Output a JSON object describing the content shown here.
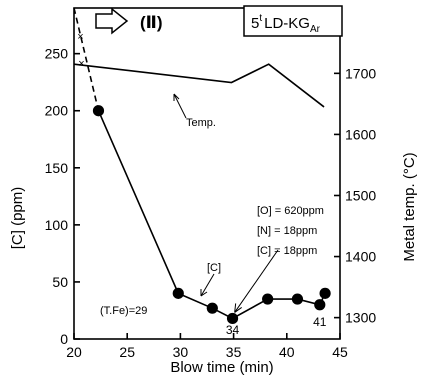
{
  "chart_data": {
    "type": "line",
    "xlabel": "Blow  time  (min)",
    "ylabel_left": "[C]  (ppm)",
    "ylabel_right": "Metal  temp. (°C)",
    "xlim": [
      20,
      45
    ],
    "ylim_left": [
      0,
      290
    ],
    "ylim_right": [
      1265,
      1807
    ],
    "x_ticks": [
      20,
      25,
      30,
      35,
      40,
      45
    ],
    "y_ticks_left": [
      0,
      50,
      100,
      150,
      200,
      250
    ],
    "y_ticks_right": [
      1300,
      1400,
      1500,
      1600,
      1700
    ],
    "grid": false,
    "series": [
      {
        "name": "[C]",
        "axis": "left",
        "x": [
          22.3,
          29.8,
          33.0,
          34.9,
          38.2,
          41.0,
          43.1,
          43.6
        ],
        "y": [
          200,
          40,
          27,
          18,
          35,
          35,
          30,
          40
        ],
        "extrapolated_start": [
          [
            20,
            290
          ],
          [
            22.3,
            200
          ]
        ]
      },
      {
        "name": "Temp.",
        "axis": "right",
        "x": [
          20,
          34.8,
          38.3,
          43.5
        ],
        "y": [
          1715,
          1685,
          1715,
          1645
        ]
      }
    ],
    "heading": "(Ⅱ)",
    "box_label": {
      "main": "5",
      "sup": "t",
      "text": "LD-KG",
      "sub": "Ar"
    },
    "annotations": {
      "temp_label": "Temp.",
      "c_label": "[C]",
      "tfe_label": "(T.Fe)=29",
      "tfe_at_34": "34",
      "tfe_at_41": "41",
      "endpoint": [
        "[O] = 620ppm",
        "[N] = 18ppm",
        "[C] = 18ppm"
      ]
    }
  }
}
